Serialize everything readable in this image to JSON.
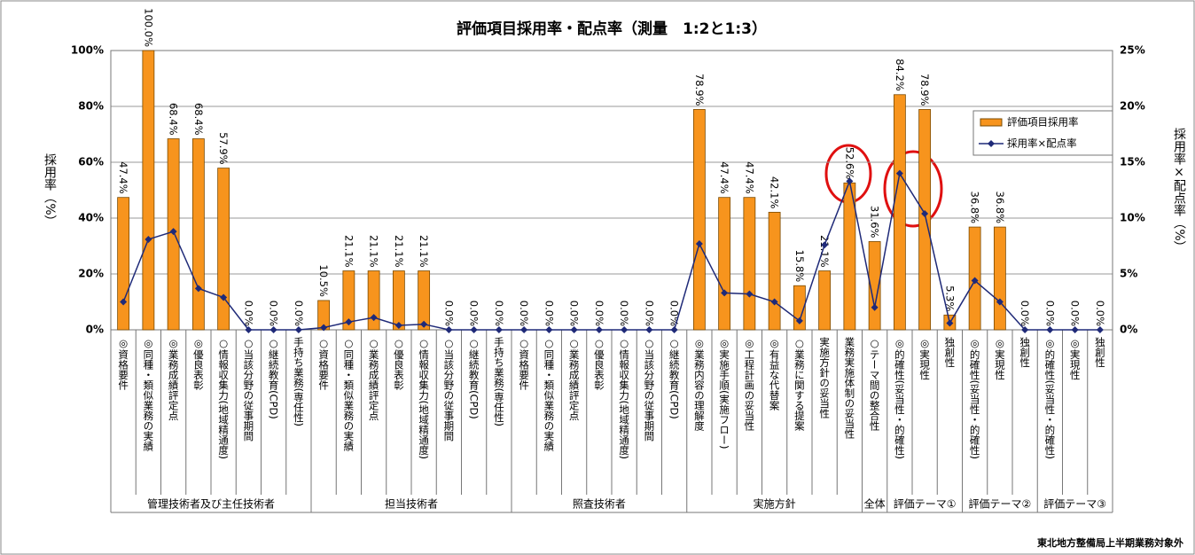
{
  "chart_data": {
    "type": "bar_line",
    "title": "評価項目採用率・配点率（測量　1:2と1:3）",
    "y_label": "採用率（%）",
    "y2_label": "採用率×配点率（%）",
    "footer": "東北地方整備局上半期業務対象外",
    "groups": [
      {
        "name": "管理技術者及び主任技術者",
        "categories": [
          "◎資格要件",
          "◎同種・類似業務の実績",
          "◎業務成績評定点",
          "◎優良表彰",
          "○情報収集力(地域精通度)",
          "○当該分野の従事期間",
          "○継続教育(CPD)",
          "手持ち業務(専任性)"
        ]
      },
      {
        "name": "担当技術者",
        "categories": [
          "○資格要件",
          "○同種・類似業務の実績",
          "○業務成績評定点",
          "○優良表彰",
          "○情報収集力(地域精通度)",
          "○当該分野の従事期間",
          "○継続教育(CPD)",
          "手持ち業務(専任性)"
        ]
      },
      {
        "name": "照査技術者",
        "categories": [
          "○資格要件",
          "○同種・類似業務の実績",
          "○業務成績評定点",
          "○優良表彰",
          "○情報収集力(地域精通度)",
          "○当該分野の従事期間",
          "○継続教育(CPD)"
        ]
      },
      {
        "name": "実施方針",
        "categories": [
          "◎業務内容の理解度",
          "◎実施手順(実施フロー)",
          "◎工程計画の妥当性",
          "◎有益な代替案",
          "○業務に関する提案",
          "実施方針の妥当性",
          "業務実施体制の妥当性"
        ]
      },
      {
        "name": "全体",
        "categories": [
          "○テーマ間の整合性"
        ]
      },
      {
        "name": "評価テーマ①",
        "categories": [
          "◎的確性(妥当性・的確性)",
          "◎実現性",
          "独創性"
        ]
      },
      {
        "name": "評価テーマ②",
        "categories": [
          "◎的確性(妥当性・的確性)",
          "◎実現性",
          "独創性"
        ]
      },
      {
        "name": "評価テーマ③",
        "categories": [
          "◎的確性(妥当性・的確性)",
          "◎実現性",
          "独創性"
        ]
      }
    ],
    "series": [
      {
        "name": "評価項目採用率",
        "type": "bar",
        "color": "#f7941d",
        "values": [
          47.4,
          100.0,
          68.4,
          68.4,
          57.9,
          0.0,
          0.0,
          0.0,
          10.5,
          21.1,
          21.1,
          21.1,
          21.1,
          0.0,
          0.0,
          0.0,
          0.0,
          0.0,
          0.0,
          0.0,
          0.0,
          0.0,
          0.0,
          78.9,
          47.4,
          47.4,
          42.1,
          15.8,
          21.1,
          52.6,
          31.6,
          84.2,
          78.9,
          5.3,
          36.8,
          36.8,
          0.0,
          0.0,
          0.0,
          0.0
        ],
        "value_labels": [
          "47.4%",
          "100.0%",
          "68.4%",
          "68.4%",
          "57.9%",
          "0.0%",
          "0.0%",
          "0.0%",
          "10.5%",
          "21.1%",
          "21.1%",
          "21.1%",
          "21.1%",
          "0.0%",
          "0.0%",
          "0.0%",
          "0.0%",
          "0.0%",
          "0.0%",
          "0.0%",
          "0.0%",
          "0.0%",
          "0.0%",
          "78.9%",
          "47.4%",
          "47.4%",
          "42.1%",
          "15.8%",
          "21.1%",
          "52.6%",
          "31.6%",
          "84.2%",
          "78.9%",
          "5.3%",
          "36.8%",
          "36.8%",
          "0.0%",
          "0.0%",
          "0.0%",
          "0.0%"
        ]
      },
      {
        "name": "採用率×配点率",
        "type": "line",
        "axis": "y2",
        "color": "#1f2a78",
        "values": [
          2.5,
          8.1,
          8.8,
          3.7,
          2.9,
          0,
          0,
          0,
          0.2,
          0.7,
          1.1,
          0.4,
          0.5,
          0,
          0,
          0,
          0,
          0,
          0,
          0,
          0,
          0,
          0,
          7.7,
          3.3,
          3.2,
          2.5,
          0.8,
          7.6,
          13.3,
          2.0,
          14.0,
          10.4,
          0.6,
          4.4,
          2.5,
          0,
          0,
          0,
          0
        ]
      }
    ],
    "ylim": [
      0,
      100
    ],
    "yticks": [
      {
        "value": 0,
        "label": "0%"
      },
      {
        "value": 20,
        "label": "20%"
      },
      {
        "value": 40,
        "label": "40%"
      },
      {
        "value": 60,
        "label": "60%"
      },
      {
        "value": 80,
        "label": "80%"
      },
      {
        "value": 100,
        "label": "100%"
      }
    ],
    "y2lim": [
      0,
      25
    ],
    "y2ticks": [
      {
        "value": 0,
        "label": "0%"
      },
      {
        "value": 5,
        "label": "5%"
      },
      {
        "value": 10,
        "label": "10%"
      },
      {
        "value": 15,
        "label": "15%"
      },
      {
        "value": 20,
        "label": "20%"
      },
      {
        "value": 25,
        "label": "25%"
      }
    ],
    "grid": true,
    "legend": "upper right"
  }
}
